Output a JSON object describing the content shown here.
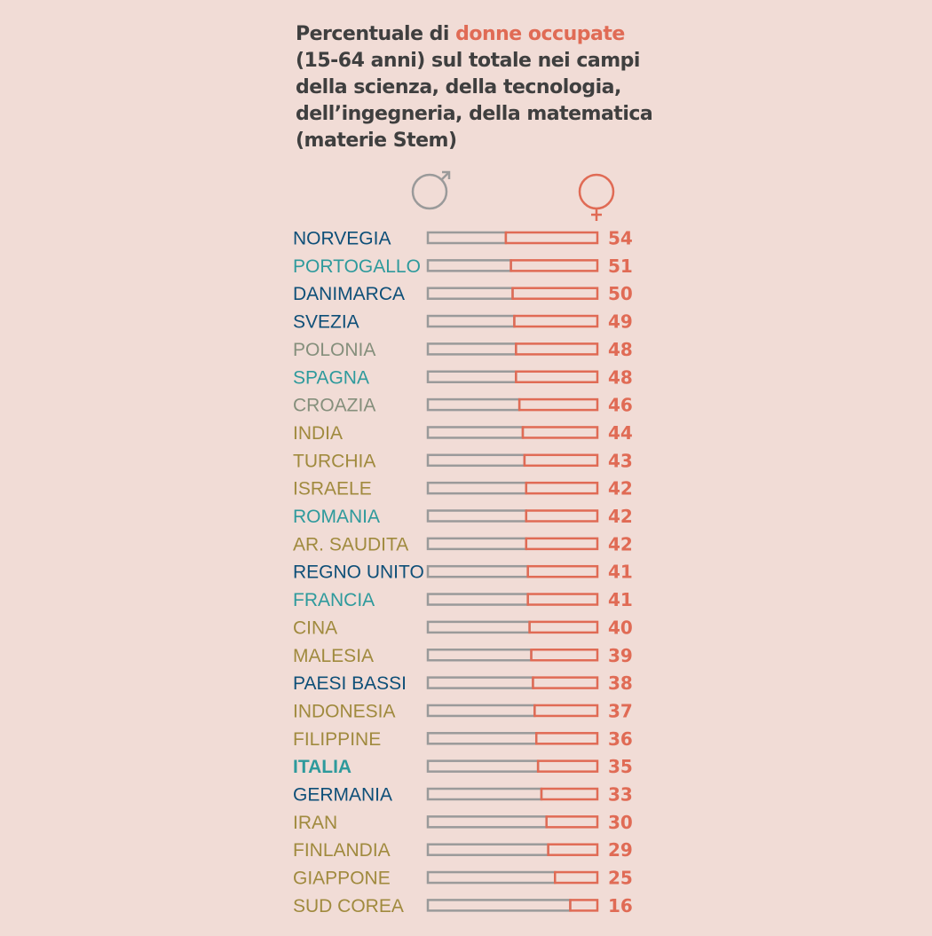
{
  "title": {
    "part1": "Percentuale di ",
    "highlight": "donne occupate",
    "part2": "(15-64 anni) sul totale nei campi della scienza, della tecnologia, dell’ingegneria, della matematica (materie Stem)"
  },
  "colors": {
    "background": "#f1dcd6",
    "male": "#9a9a9a",
    "female": "#e06b55",
    "dark_blue": "#0e4f78",
    "teal": "#2e9a9c",
    "gray_green": "#858f7c",
    "olive": "#a08a3e"
  },
  "icons": {
    "male": "male-symbol-icon",
    "female": "female-symbol-icon"
  },
  "chart_data": {
    "type": "bar",
    "orientation": "horizontal",
    "stacked": true,
    "unit": "%",
    "xlim": [
      0,
      100
    ],
    "categories": [
      "NORVEGIA",
      "PORTOGALLO",
      "DANIMARCA",
      "SVEZIA",
      "POLONIA",
      "SPAGNA",
      "CROAZIA",
      "INDIA",
      "TURCHIA",
      "ISRAELE",
      "ROMANIA",
      "AR. SAUDITA",
      "REGNO UNITO",
      "FRANCIA",
      "CINA",
      "MALESIA",
      "PAESI BASSI",
      "INDONESIA",
      "FILIPPINE",
      "ITALIA",
      "GERMANIA",
      "IRAN",
      "FINLANDIA",
      "GIAPPONE",
      "SUD COREA"
    ],
    "label_colors": [
      "#0e4f78",
      "#2e9a9c",
      "#0e4f78",
      "#0e4f78",
      "#858f7c",
      "#2e9a9c",
      "#858f7c",
      "#a08a3e",
      "#a08a3e",
      "#a08a3e",
      "#2e9a9c",
      "#a08a3e",
      "#0e4f78",
      "#2e9a9c",
      "#a08a3e",
      "#a08a3e",
      "#0e4f78",
      "#a08a3e",
      "#a08a3e",
      "#2e9a9c",
      "#0e4f78",
      "#a08a3e",
      "#a08a3e",
      "#a08a3e",
      "#a08a3e"
    ],
    "highlighted": "ITALIA",
    "values": [
      54,
      51,
      50,
      49,
      48,
      48,
      46,
      44,
      43,
      42,
      42,
      42,
      41,
      41,
      40,
      39,
      38,
      37,
      36,
      35,
      33,
      30,
      29,
      25,
      16
    ]
  }
}
